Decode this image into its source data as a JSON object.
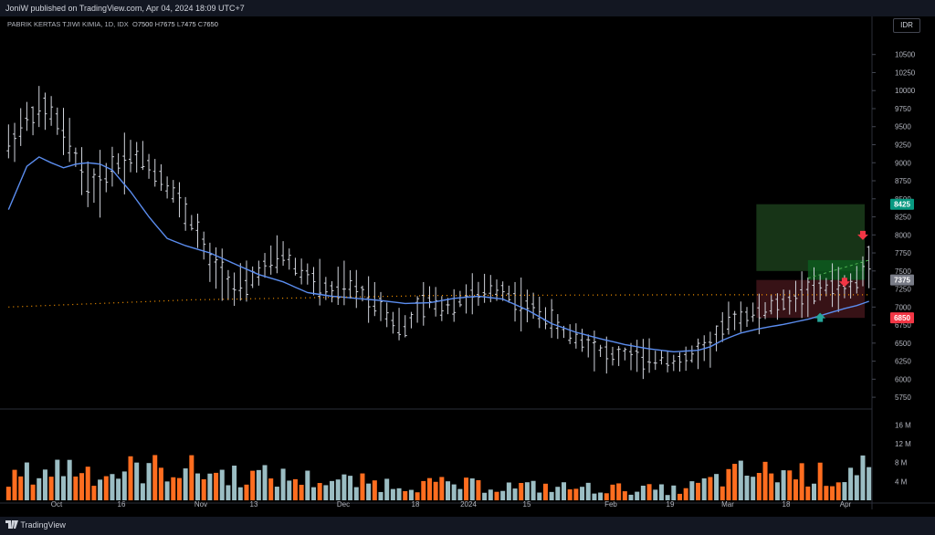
{
  "header": {
    "published": "JoniW published on TradingView.com, Apr 04, 2024 18:09 UTC+7"
  },
  "legend": {
    "name": "PABRIK KERTAS TJIWI KIMIA, 1D, IDX",
    "o_label": "O",
    "o": "7500",
    "h_label": "H",
    "h": "7675",
    "l_label": "L",
    "l": "7475",
    "c_label": "C",
    "c": "7650"
  },
  "currency": "IDR",
  "price_axis": {
    "ticks": [
      "10500",
      "10250",
      "10000",
      "9750",
      "9500",
      "9250",
      "9000",
      "8750",
      "8500",
      "8250",
      "8000",
      "7750",
      "7500",
      "7250",
      "7000",
      "6750",
      "6500",
      "6250",
      "6000",
      "5750"
    ]
  },
  "price_badges": [
    {
      "label": "8425",
      "price": 8425,
      "color": "#089981"
    },
    {
      "label": "7375",
      "price": 7375,
      "color": "#787b86"
    },
    {
      "label": "6850",
      "price": 6850,
      "color": "#f23645"
    }
  ],
  "volume_axis": {
    "ticks": [
      "16 M",
      "12 M",
      "8 M",
      "4 M"
    ]
  },
  "time_axis": {
    "labels": [
      "Oct",
      "16",
      "Nov",
      "13",
      "Dec",
      "18",
      "2024",
      "15",
      "Feb",
      "19",
      "Mar",
      "18",
      "Apr"
    ]
  },
  "footer": {
    "brand": "TradingView"
  },
  "colors": {
    "up_bar": "#d1d4dc",
    "ma_line": "#5b8def",
    "dotted_ma": "#ff9800",
    "vol_up": "#9bbdc3",
    "vol_down": "#ff6d1f",
    "target_zone": "#1b3d1b",
    "stop_zone": "#3d1418",
    "buy_arrow": "#26a69a",
    "sell_arrow": "#f23645"
  },
  "chart_data": {
    "type": "ohlc",
    "ylim": [
      5650,
      10800
    ],
    "volume_ylim": [
      0,
      18
    ],
    "anchors": [
      [
        0,
        9250
      ],
      [
        3,
        9600
      ],
      [
        5,
        9700
      ],
      [
        7,
        9700
      ],
      [
        9,
        9400
      ],
      [
        11,
        9100
      ],
      [
        13,
        8700
      ],
      [
        15,
        8700
      ],
      [
        17,
        8950
      ],
      [
        20,
        9100
      ],
      [
        22,
        9050
      ],
      [
        25,
        8800
      ],
      [
        27,
        8600
      ],
      [
        29,
        8300
      ],
      [
        31,
        8050
      ],
      [
        33,
        7600
      ],
      [
        35,
        7500
      ],
      [
        37,
        7250
      ],
      [
        39,
        7300
      ],
      [
        41,
        7500
      ],
      [
        43,
        7600
      ],
      [
        45,
        7750
      ],
      [
        47,
        7550
      ],
      [
        49,
        7450
      ],
      [
        51,
        7300
      ],
      [
        53,
        7200
      ],
      [
        55,
        7300
      ],
      [
        57,
        7250
      ],
      [
        59,
        7150
      ],
      [
        61,
        7050
      ],
      [
        63,
        6800
      ],
      [
        65,
        6700
      ],
      [
        67,
        6950
      ],
      [
        69,
        7100
      ],
      [
        71,
        7000
      ],
      [
        73,
        7050
      ],
      [
        75,
        7150
      ],
      [
        77,
        7150
      ],
      [
        79,
        7250
      ],
      [
        81,
        7250
      ],
      [
        83,
        7100
      ],
      [
        85,
        7000
      ],
      [
        87,
        6950
      ],
      [
        89,
        6800
      ],
      [
        91,
        6650
      ],
      [
        93,
        6600
      ],
      [
        95,
        6500
      ],
      [
        97,
        6400
      ],
      [
        99,
        6300
      ],
      [
        101,
        6350
      ],
      [
        103,
        6300
      ],
      [
        105,
        6250
      ],
      [
        107,
        6300
      ],
      [
        109,
        6250
      ],
      [
        111,
        6250
      ],
      [
        113,
        6400
      ],
      [
        115,
        6450
      ],
      [
        117,
        6700
      ],
      [
        119,
        6850
      ],
      [
        121,
        6900
      ],
      [
        123,
        6900
      ],
      [
        125,
        7000
      ],
      [
        127,
        7050
      ],
      [
        129,
        7150
      ],
      [
        131,
        7200
      ],
      [
        133,
        7250
      ],
      [
        135,
        7300
      ],
      [
        137,
        7250
      ],
      [
        139,
        7350
      ],
      [
        141,
        7650
      ]
    ],
    "ma_curve": [
      [
        0,
        8350
      ],
      [
        3,
        8950
      ],
      [
        5,
        9080
      ],
      [
        7,
        9000
      ],
      [
        9,
        8930
      ],
      [
        11,
        8980
      ],
      [
        13,
        9000
      ],
      [
        15,
        8980
      ],
      [
        17,
        8900
      ],
      [
        20,
        8600
      ],
      [
        23,
        8250
      ],
      [
        26,
        7950
      ],
      [
        29,
        7850
      ],
      [
        33,
        7750
      ],
      [
        37,
        7600
      ],
      [
        41,
        7450
      ],
      [
        45,
        7350
      ],
      [
        49,
        7200
      ],
      [
        53,
        7150
      ],
      [
        57,
        7120
      ],
      [
        61,
        7090
      ],
      [
        65,
        7050
      ],
      [
        69,
        7060
      ],
      [
        73,
        7120
      ],
      [
        77,
        7150
      ],
      [
        81,
        7110
      ],
      [
        85,
        6960
      ],
      [
        89,
        6770
      ],
      [
        93,
        6650
      ],
      [
        97,
        6560
      ],
      [
        101,
        6480
      ],
      [
        105,
        6420
      ],
      [
        109,
        6380
      ],
      [
        113,
        6400
      ],
      [
        115,
        6450
      ],
      [
        117,
        6540
      ],
      [
        120,
        6640
      ],
      [
        123,
        6700
      ],
      [
        127,
        6760
      ],
      [
        131,
        6830
      ],
      [
        135,
        6930
      ],
      [
        137,
        6980
      ],
      [
        139,
        7020
      ],
      [
        141,
        7080
      ]
    ],
    "dotted_ma": [
      [
        0,
        7000
      ],
      [
        30,
        7100
      ],
      [
        70,
        7160
      ],
      [
        110,
        7170
      ],
      [
        141,
        7170
      ]
    ],
    "volume_peaks_M": [
      [
        0,
        6.5
      ],
      [
        10,
        10
      ],
      [
        16,
        7.5
      ],
      [
        20,
        9
      ],
      [
        28,
        9.5
      ],
      [
        33,
        8
      ],
      [
        60,
        5
      ],
      [
        110,
        3
      ],
      [
        120,
        8
      ],
      [
        131,
        8
      ],
      [
        136,
        6.5
      ],
      [
        140,
        12
      ],
      [
        141,
        8
      ]
    ],
    "zones": {
      "target": [
        7500,
        8425
      ],
      "stop": [
        6850,
        7375
      ]
    }
  }
}
